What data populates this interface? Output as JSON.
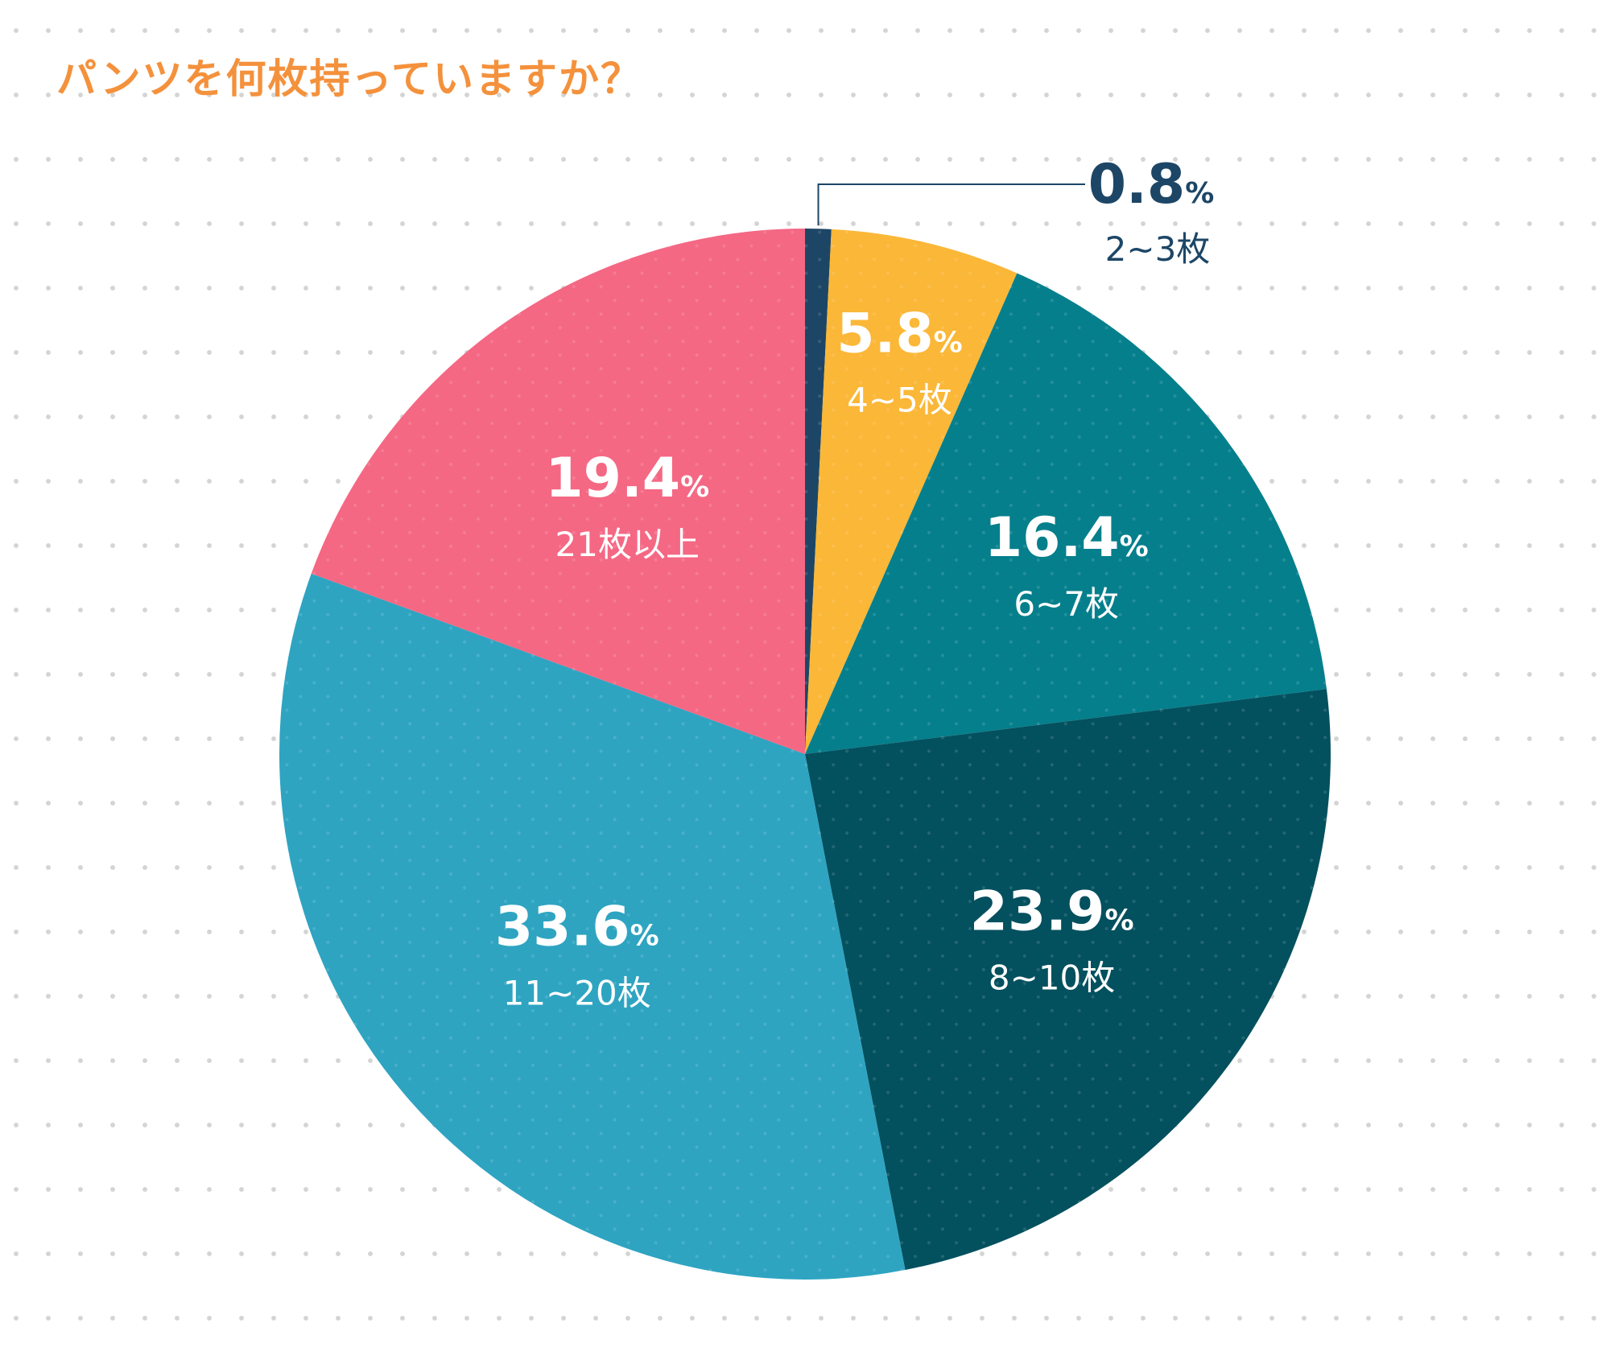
{
  "title": "パンツを何枚持っていますか？",
  "colors": {
    "title": "#f4913c",
    "label_light": "#ffffff",
    "label_dark": "#1d4666"
  },
  "chart_data": {
    "type": "pie",
    "title": "パンツを何枚持っていますか？",
    "start_angle_deg": 0,
    "direction": "clockwise",
    "slices": [
      {
        "label": "2~3枚",
        "value": 0.8,
        "pct_text": "0.8",
        "unit": "%",
        "color": "#1d4666",
        "callout": true
      },
      {
        "label": "4~5枚",
        "value": 5.8,
        "pct_text": "5.8",
        "unit": "%",
        "color": "#fbb737"
      },
      {
        "label": "6~7枚",
        "value": 16.4,
        "pct_text": "16.4",
        "unit": "%",
        "color": "#057f8c"
      },
      {
        "label": "8~10枚",
        "value": 23.9,
        "pct_text": "23.9",
        "unit": "%",
        "color": "#03505e"
      },
      {
        "label": "11~20枚",
        "value": 33.6,
        "pct_text": "33.6",
        "unit": "%",
        "color": "#2ea4c1"
      },
      {
        "label": "21枚以上",
        "value": 19.4,
        "pct_text": "19.4",
        "unit": "%",
        "color": "#f46884"
      }
    ]
  }
}
